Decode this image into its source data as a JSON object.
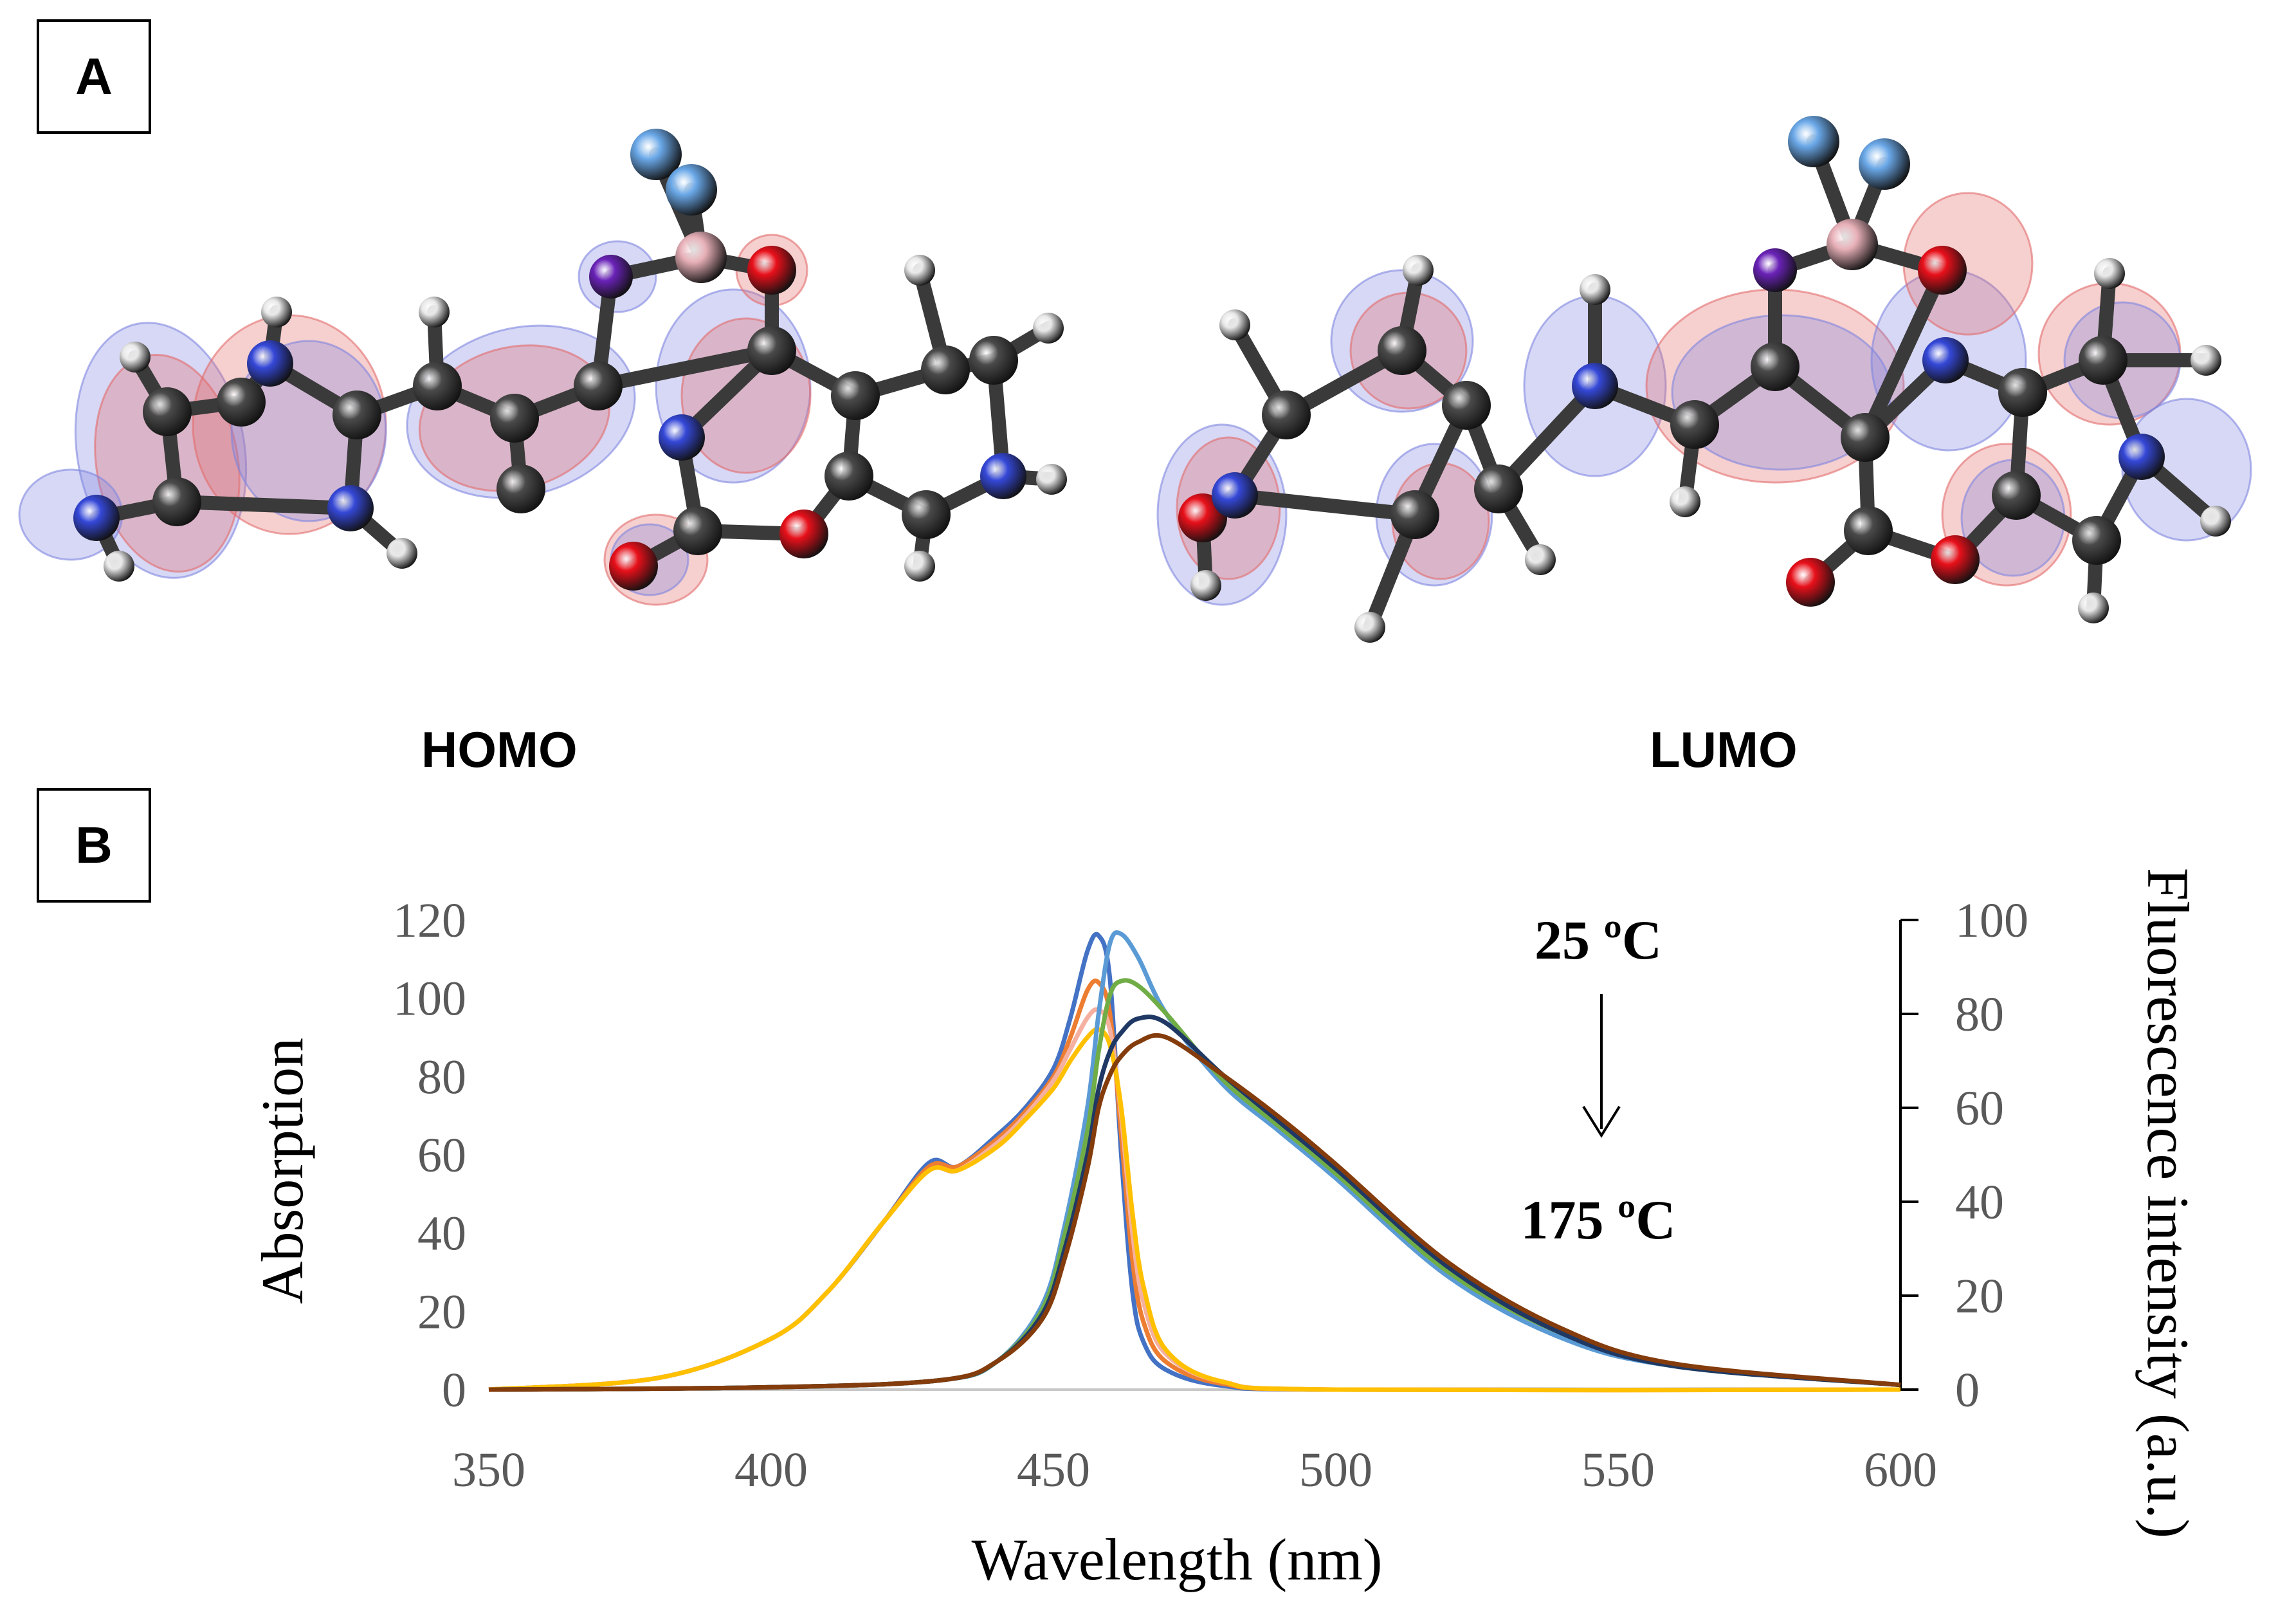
{
  "panels": {
    "a_label": "A",
    "b_label": "B"
  },
  "orbitals": {
    "homo_label": "HOMO",
    "lumo_label": "LUMO"
  },
  "colors": {
    "carbon": "#4a4a4a",
    "nitrogen": "#3548d8",
    "oxygen": "#e8101a",
    "hydrogen": "#e8e8e8",
    "boron": "#e8b0b8",
    "fluorine": "#6aa8e8",
    "iodine": "#6a22b8",
    "lobe_pos": "#e36a6a",
    "lobe_neg": "#7f86e0"
  },
  "chart_data": {
    "type": "line",
    "xlabel": "Wavelength (nm)",
    "ylabel_left": "Absorption",
    "ylabel_right": "Fluorescence intensity (a.u.)",
    "xlim": [
      350,
      600
    ],
    "ylim_left": [
      0,
      120
    ],
    "ylim_right": [
      0,
      100
    ],
    "x_ticks": [
      "350",
      "400",
      "450",
      "500",
      "550",
      "600"
    ],
    "y_ticks_left": [
      "0",
      "20",
      "40",
      "60",
      "80",
      "100",
      "120"
    ],
    "y_ticks_right": [
      "0",
      "20",
      "40",
      "60",
      "80",
      "100"
    ],
    "annotation_top": "25 ºC",
    "annotation_bottom": "175 ºC",
    "grid": false,
    "absorption_series": [
      {
        "color": "#4472c4",
        "x": [
          350,
          380,
          400,
          410,
          420,
          428,
          433,
          440,
          445,
          450,
          453,
          456,
          458,
          460,
          462,
          464,
          466,
          470,
          480,
          500,
          600
        ],
        "y": [
          0,
          3,
          13,
          25,
          43,
          58,
          57,
          65,
          72,
          82,
          95,
          112,
          116,
          105,
          60,
          25,
          12,
          5,
          1,
          0,
          0
        ]
      },
      {
        "color": "#ed7d31",
        "x": [
          350,
          380,
          400,
          410,
          420,
          428,
          433,
          440,
          445,
          450,
          453,
          456,
          458,
          460,
          462,
          464,
          466,
          470,
          480,
          500,
          600
        ],
        "y": [
          0,
          3,
          13,
          25,
          43,
          57,
          57,
          64,
          71,
          80,
          90,
          102,
          104,
          96,
          65,
          33,
          17,
          7,
          1.5,
          0,
          0
        ]
      },
      {
        "color": "#f5b0a0",
        "x": [
          350,
          380,
          400,
          410,
          420,
          428,
          433,
          440,
          445,
          450,
          453,
          456,
          458,
          460,
          462,
          464,
          466,
          470,
          480,
          500,
          600
        ],
        "y": [
          0,
          3,
          13,
          25,
          43,
          56,
          56,
          63,
          70,
          79,
          87,
          95,
          97,
          92,
          70,
          40,
          22,
          9,
          2,
          0,
          0
        ]
      },
      {
        "color": "#ffc000",
        "x": [
          350,
          380,
          400,
          410,
          420,
          428,
          433,
          440,
          445,
          450,
          453,
          456,
          458,
          460,
          462,
          464,
          466,
          470,
          480,
          500,
          600
        ],
        "y": [
          0,
          3,
          13,
          25,
          43,
          56,
          56,
          62,
          69,
          77,
          84,
          90,
          92,
          88,
          72,
          45,
          26,
          10,
          2,
          0,
          0
        ]
      }
    ],
    "fluorescence_series": [
      {
        "color": "#5b9bd5",
        "x": [
          350,
          400,
          430,
          440,
          448,
          452,
          456,
          458,
          460,
          462,
          465,
          470,
          480,
          490,
          500,
          520,
          540,
          560,
          600
        ],
        "y": [
          0,
          0.5,
          2,
          6,
          18,
          35,
          60,
          80,
          95,
          97,
          92,
          80,
          65,
          55,
          45,
          24,
          11,
          5,
          1
        ]
      },
      {
        "color": "#70ad47",
        "x": [
          350,
          400,
          430,
          440,
          448,
          452,
          456,
          458,
          460,
          462,
          465,
          470,
          480,
          490,
          500,
          520,
          540,
          560,
          600
        ],
        "y": [
          0,
          0.5,
          2,
          6,
          17,
          33,
          55,
          72,
          84,
          87,
          86,
          80,
          66,
          56,
          46,
          25,
          12,
          5,
          1
        ]
      },
      {
        "color": "#1f3864",
        "x": [
          350,
          400,
          430,
          440,
          448,
          452,
          456,
          458,
          460,
          462,
          465,
          470,
          480,
          490,
          500,
          520,
          540,
          560,
          600
        ],
        "y": [
          0,
          0.5,
          2,
          6,
          16,
          30,
          50,
          64,
          72,
          76,
          79,
          78,
          67,
          57,
          47,
          26,
          12,
          5,
          1
        ]
      },
      {
        "color": "#843c0c",
        "x": [
          350,
          400,
          430,
          440,
          448,
          452,
          456,
          458,
          460,
          462,
          465,
          470,
          480,
          490,
          500,
          520,
          540,
          560,
          600
        ],
        "y": [
          0,
          0.5,
          2,
          6,
          15,
          28,
          47,
          60,
          67,
          71,
          74,
          75,
          67,
          58,
          48,
          27,
          13,
          5.5,
          1
        ]
      }
    ]
  }
}
